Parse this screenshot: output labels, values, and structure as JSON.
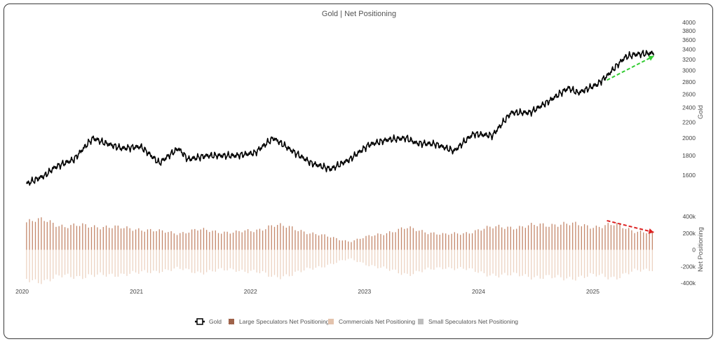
{
  "chart_data": [
    {
      "type": "line",
      "title": "Gold | Net Positioning",
      "series": [
        {
          "name": "Gold",
          "color": "#000000",
          "x": [
            "2020-01",
            "2020-03",
            "2020-04",
            "2020-06",
            "2020-08",
            "2020-09",
            "2020-11",
            "2021-01",
            "2021-03",
            "2021-05",
            "2021-06",
            "2021-08",
            "2021-11",
            "2022-01",
            "2022-03",
            "2022-05",
            "2022-07",
            "2022-09",
            "2022-11",
            "2023-01",
            "2023-03",
            "2023-05",
            "2023-06",
            "2023-08",
            "2023-10",
            "2023-12",
            "2024-02",
            "2024-04",
            "2024-06",
            "2024-08",
            "2024-10",
            "2024-11",
            "2025-01",
            "2025-02",
            "2025-04",
            "2025-05",
            "2025-07"
          ],
          "y": [
            1520,
            1600,
            1680,
            1760,
            2000,
            1950,
            1880,
            1900,
            1720,
            1880,
            1760,
            1800,
            1800,
            1830,
            2000,
            1850,
            1720,
            1660,
            1760,
            1920,
            1980,
            2000,
            1940,
            1930,
            1850,
            2050,
            2030,
            2330,
            2330,
            2500,
            2700,
            2620,
            2760,
            2900,
            3250,
            3300,
            3330
          ]
        }
      ],
      "ylabel": "Gold",
      "ylim": [
        1400,
        4000
      ],
      "yscale": "log",
      "ytick_labels": [
        "1600",
        "1800",
        "2000",
        "2200",
        "2400",
        "2600",
        "2800",
        "3000",
        "3200",
        "3400",
        "3600",
        "3800",
        "4000"
      ],
      "annotations": [
        {
          "type": "arrow",
          "style": "dashed",
          "color": "#33cc33",
          "from": {
            "x": "2025-02",
            "y": 2830
          },
          "to": {
            "x": "2025-07",
            "y": 3270
          }
        }
      ]
    },
    {
      "type": "bar",
      "series": [
        {
          "name": "Large Speculators Net Positioning",
          "color": "#c4876a",
          "x": [
            "2020-01",
            "2020-03",
            "2020-05",
            "2020-07",
            "2020-09",
            "2020-11",
            "2021-01",
            "2021-03",
            "2021-05",
            "2021-07",
            "2021-09",
            "2021-11",
            "2022-01",
            "2022-03",
            "2022-05",
            "2022-07",
            "2022-09",
            "2022-11",
            "2023-01",
            "2023-03",
            "2023-05",
            "2023-07",
            "2023-09",
            "2023-11",
            "2024-01",
            "2024-03",
            "2024-05",
            "2024-07",
            "2024-09",
            "2024-11",
            "2025-01",
            "2025-03",
            "2025-05",
            "2025-07"
          ],
          "values": [
            330000,
            360000,
            280000,
            290000,
            280000,
            260000,
            250000,
            220000,
            200000,
            240000,
            220000,
            210000,
            230000,
            300000,
            260000,
            200000,
            150000,
            100000,
            160000,
            210000,
            260000,
            220000,
            180000,
            200000,
            250000,
            280000,
            270000,
            300000,
            310000,
            300000,
            280000,
            300000,
            230000,
            200000
          ]
        },
        {
          "name": "Commercials Net Positioning",
          "color": "#ecd3c2",
          "x": [
            "2020-01",
            "2020-03",
            "2020-05",
            "2020-07",
            "2020-09",
            "2020-11",
            "2021-01",
            "2021-03",
            "2021-05",
            "2021-07",
            "2021-09",
            "2021-11",
            "2022-01",
            "2022-03",
            "2022-05",
            "2022-07",
            "2022-09",
            "2022-11",
            "2023-01",
            "2023-03",
            "2023-05",
            "2023-07",
            "2023-09",
            "2023-11",
            "2024-01",
            "2024-03",
            "2024-05",
            "2024-07",
            "2024-09",
            "2024-11",
            "2025-01",
            "2025-03",
            "2025-05",
            "2025-07"
          ],
          "values": [
            -350000,
            -380000,
            -310000,
            -320000,
            -310000,
            -290000,
            -280000,
            -250000,
            -230000,
            -270000,
            -250000,
            -240000,
            -260000,
            -330000,
            -290000,
            -230000,
            -170000,
            -110000,
            -180000,
            -240000,
            -290000,
            -250000,
            -210000,
            -230000,
            -280000,
            -310000,
            -300000,
            -330000,
            -340000,
            -330000,
            -310000,
            -330000,
            -260000,
            -230000
          ]
        },
        {
          "name": "Small Speculators Net Positioning",
          "color": "#bdbdbd",
          "x": [],
          "values": []
        }
      ],
      "ylabel": "Net Positioning",
      "ylim": [
        -400000,
        400000
      ],
      "ytick_labels": [
        "400k",
        "200k",
        "0",
        "-200k",
        "-400k"
      ],
      "annotations": [
        {
          "type": "arrow",
          "style": "dashed",
          "color": "#dd2222",
          "from": {
            "x": "2025-02",
            "y": 350000
          },
          "to": {
            "x": "2025-07",
            "y": 210000
          }
        }
      ]
    }
  ],
  "xaxis": {
    "range": [
      "2019-12-15",
      "2025-09-15"
    ],
    "ticks": [
      {
        "label": "2020",
        "date": "2020-01-01"
      },
      {
        "label": "2021",
        "date": "2021-01-01"
      },
      {
        "label": "2022",
        "date": "2022-01-01"
      },
      {
        "label": "2023",
        "date": "2023-01-01"
      },
      {
        "label": "2024",
        "date": "2024-01-01"
      },
      {
        "label": "2025",
        "date": "2025-01-01"
      }
    ]
  },
  "legend": {
    "placement": "bottom-center",
    "items": [
      {
        "label": "Gold",
        "color": "#000000",
        "icon": "line-swatch-icon"
      },
      {
        "label": "Large Speculators Net Positioning",
        "color": "#c4876a",
        "icon": "checker-swatch-icon"
      },
      {
        "label": "Commercials Net Positioning",
        "color": "#e3c3ad",
        "icon": "square-swatch-icon"
      },
      {
        "label": "Small Speculators Net Positioning",
        "color": "#bdbdbd",
        "icon": "square-swatch-icon"
      }
    ]
  }
}
